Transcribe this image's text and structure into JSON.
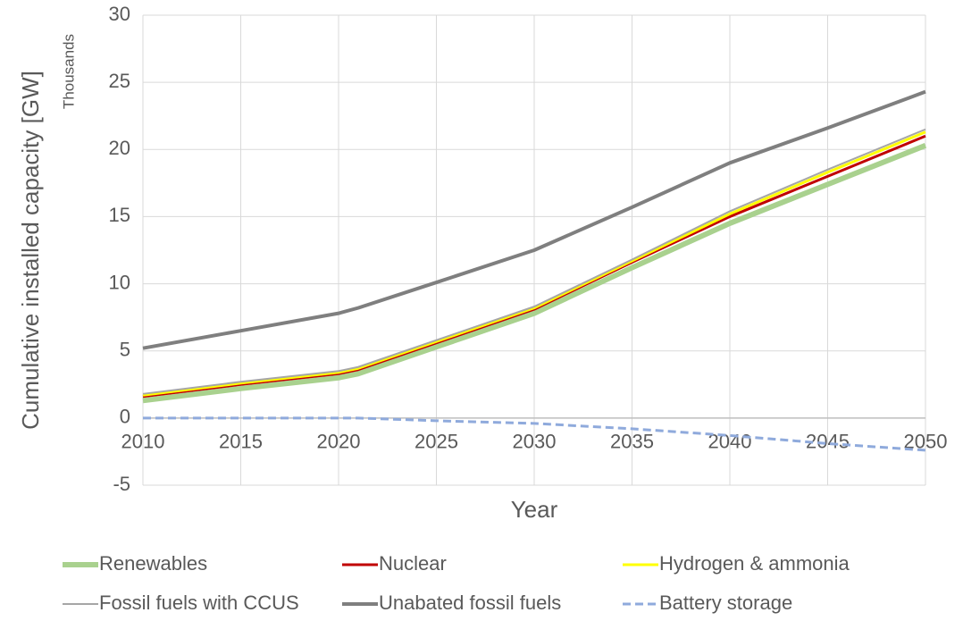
{
  "chart_data": {
    "type": "line",
    "ylabel": "Cumulative installed capacity [GW]",
    "xlabel": "Year",
    "units_label": "Thousands",
    "x": [
      2010,
      2015,
      2020,
      2021,
      2025,
      2030,
      2035,
      2040,
      2045,
      2050
    ],
    "xlim": [
      2010,
      2050
    ],
    "xticks": [
      2010,
      2015,
      2020,
      2025,
      2030,
      2035,
      2040,
      2045,
      2050
    ],
    "ylim": [
      -5,
      30
    ],
    "yticks": [
      -5,
      0,
      5,
      10,
      15,
      20,
      25,
      30
    ],
    "grid": true,
    "legend": "bottom",
    "series": [
      {
        "name": "Renewables",
        "color": "#a9d18e",
        "values": [
          1.3,
          2.2,
          3.0,
          3.3,
          5.3,
          7.8,
          11.2,
          14.5,
          17.4,
          20.3
        ]
      },
      {
        "name": "Nuclear",
        "color": "#c00000",
        "values": [
          1.6,
          2.5,
          3.3,
          3.6,
          5.6,
          8.1,
          11.6,
          15.0,
          18.0,
          21.0
        ]
      },
      {
        "name": "Hydrogen & ammonia",
        "color": "#ffff00",
        "values": [
          1.7,
          2.6,
          3.4,
          3.7,
          5.7,
          8.2,
          11.7,
          15.2,
          18.3,
          21.3
        ]
      },
      {
        "name": "Fossil fuels with CCUS",
        "color": "#a6a6a6",
        "values": [
          1.8,
          2.7,
          3.5,
          3.8,
          5.8,
          8.3,
          11.8,
          15.4,
          18.5,
          21.5
        ]
      },
      {
        "name": "Unabated fossil fuels",
        "color": "#7f7f7f",
        "values": [
          5.2,
          6.5,
          7.8,
          8.2,
          10.1,
          12.5,
          15.7,
          19.0,
          21.6,
          24.3
        ]
      },
      {
        "name": "Battery storage",
        "color": "#8faadc",
        "dashed": true,
        "values": [
          0,
          0,
          0,
          0,
          -0.2,
          -0.4,
          -0.8,
          -1.3,
          -1.9,
          -2.4
        ]
      }
    ]
  }
}
